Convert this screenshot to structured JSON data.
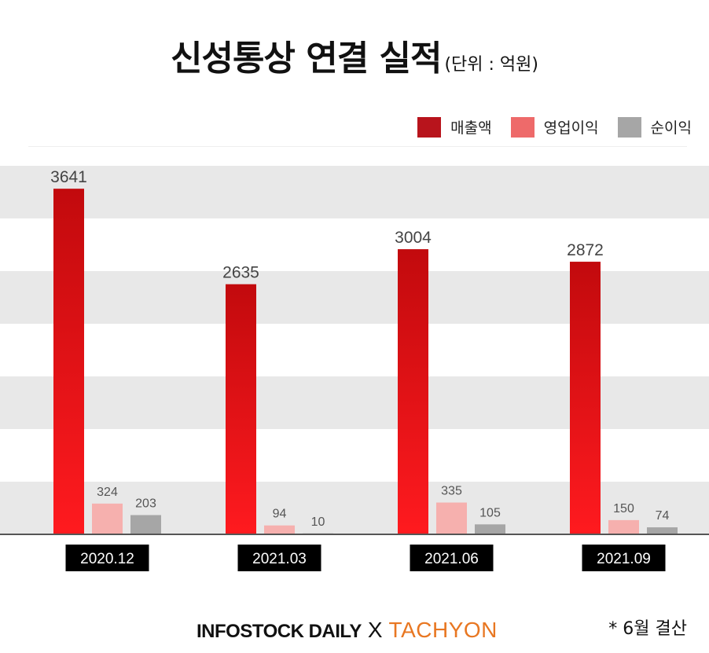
{
  "title": "신성통상 연결 실적",
  "unit": "(단위 : 억원)",
  "footer": {
    "brand_left": "INFOSTOCK DAILY",
    "separator": "X",
    "brand_right": "TACHYON",
    "note": "* 6월 결산"
  },
  "colors": {
    "revenue": "#e0141a",
    "operating_profit": "#f6b0ae",
    "net_profit": "#a6a6a6",
    "legend_revenue": "#b8141c",
    "legend_operating": "#ee6a6a",
    "legend_net": "#a6a6a6"
  },
  "chart_data": {
    "type": "bar",
    "categories": [
      "2020.12",
      "2021.03",
      "2021.06",
      "2021.09"
    ],
    "series": [
      {
        "name": "매출액",
        "values": [
          3641,
          2635,
          3004,
          2872
        ]
      },
      {
        "name": "영업이익",
        "values": [
          324,
          94,
          335,
          150
        ]
      },
      {
        "name": "순이익",
        "values": [
          203,
          10,
          105,
          74
        ]
      }
    ],
    "ylim": [
      0,
      3500
    ],
    "grid": "alternating horizontal bands",
    "legend": "top-right"
  }
}
